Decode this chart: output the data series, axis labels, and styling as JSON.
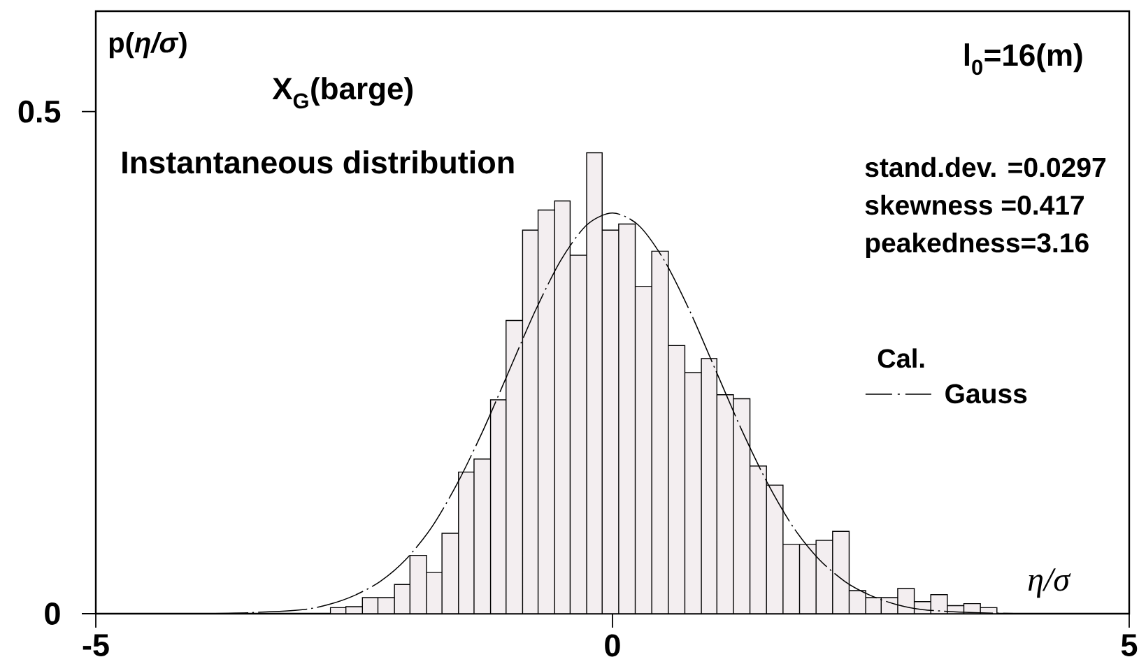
{
  "chart_data": {
    "type": "histogram",
    "title": "X$_{G}$(barge)",
    "subtitle": "Instantaneous distribution",
    "xlabel": "η/σ",
    "ylabel": "p(*η/σ*)",
    "annotations": [
      "l$_{0}$=16(m)",
      "stand.dev. =0.0297",
      "skewness =0.417",
      "peakedness=3.16"
    ],
    "bins": [
      -2.73,
      -2.58,
      -2.42,
      -2.27,
      -2.11,
      -1.96,
      -1.8,
      -1.65,
      -1.49,
      -1.34,
      -1.18,
      -1.03,
      -0.87,
      -0.72,
      -0.56,
      -0.41,
      -0.25,
      -0.1,
      0.06,
      0.22,
      0.38,
      0.54,
      0.7,
      0.86,
      1.01,
      1.17,
      1.33,
      1.49,
      1.65,
      1.81,
      1.97,
      2.13,
      2.29,
      2.45,
      2.6,
      2.76,
      2.92,
      3.08,
      3.24,
      3.4,
      3.56,
      3.72
    ],
    "series": [
      {
        "color": "#f3eef0",
        "values": [
          0.006,
          0.007,
          0.016,
          0.016,
          0.029,
          0.058,
          0.041,
          0.08,
          0.141,
          0.154,
          0.213,
          0.292,
          0.382,
          0.402,
          0.411,
          0.357,
          0.459,
          0.382,
          0.388,
          0.326,
          0.361,
          0.267,
          0.24,
          0.254,
          0.218,
          0.214,
          0.147,
          0.128,
          0.069,
          0.069,
          0.073,
          0.082,
          0.023,
          0.016,
          0.016,
          0.025,
          0.012,
          0.019,
          0.008,
          0.01,
          0.006
        ]
      },
      {
        "name": "Gauss",
        "type": "line",
        "color": "#000000",
        "line_style": "dashed",
        "x": [
          -4,
          -3.5,
          -3,
          -2.75,
          -2.5,
          -2.25,
          -2,
          -1.75,
          -1.5,
          -1.25,
          -1,
          -0.75,
          -0.5,
          -0.25,
          0,
          0.25,
          0.5,
          0.75,
          1,
          1.25,
          1.5,
          1.75,
          2,
          2.25,
          2.5,
          2.75,
          3,
          3.5,
          4
        ],
        "values": [
          0.0,
          0.001,
          0.004,
          0.009,
          0.018,
          0.032,
          0.054,
          0.086,
          0.13,
          0.183,
          0.242,
          0.301,
          0.352,
          0.387,
          0.399,
          0.387,
          0.352,
          0.301,
          0.242,
          0.183,
          0.13,
          0.086,
          0.054,
          0.032,
          0.018,
          0.009,
          0.004,
          0.001,
          0.0
        ]
      }
    ],
    "xlim": [
      -5,
      5
    ],
    "ylim": [
      0,
      0.6
    ],
    "xticks": [
      -5,
      0,
      5
    ],
    "yticks": [
      0,
      0.5
    ],
    "legend": "right",
    "legend_title": "Cal."
  }
}
